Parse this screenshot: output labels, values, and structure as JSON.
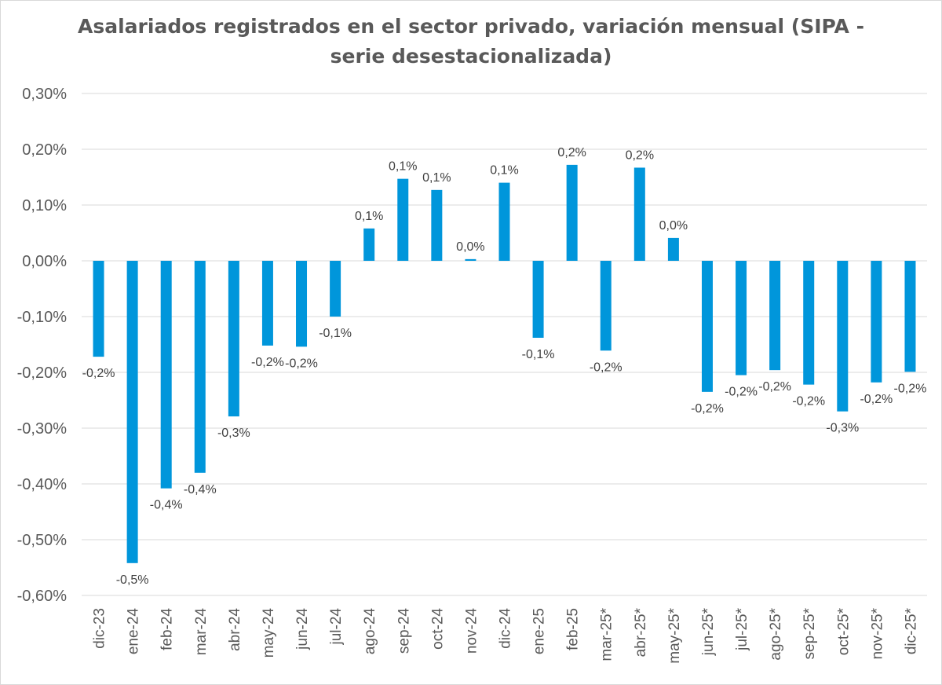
{
  "chart_data": {
    "type": "bar",
    "title_lines": [
      "Asalariados registrados en el sector privado, variación mensual (SIPA -",
      "serie desestacionalizada)"
    ],
    "xlabel": "",
    "ylabel": "",
    "ylim": [
      -0.6,
      0.3
    ],
    "yticks": [
      0.3,
      0.2,
      0.1,
      0.0,
      -0.1,
      -0.2,
      -0.3,
      -0.4,
      -0.5,
      -0.6
    ],
    "ytick_labels": [
      "0,30%",
      "0,20%",
      "0,10%",
      "0,00%",
      "-0,10%",
      "-0,20%",
      "-0,30%",
      "-0,40%",
      "-0,50%",
      "-0,60%"
    ],
    "grid": true,
    "bar_color": "#0096DB",
    "categories": [
      "dic-23",
      "ene-24",
      "feb-24",
      "mar-24",
      "abr-24",
      "may-24",
      "jun-24",
      "jul-24",
      "ago-24",
      "sep-24",
      "oct-24",
      "nov-24",
      "dic-24",
      "ene-25",
      "feb-25",
      "mar-25*",
      "abr-25*",
      "may-25*",
      "jun-25*",
      "jul-25*",
      "ago-25*",
      "sep-25*",
      "oct-25*",
      "nov-25*",
      "dic-25*"
    ],
    "values": [
      -0.172,
      -0.542,
      -0.408,
      -0.38,
      -0.279,
      -0.152,
      -0.154,
      -0.1,
      0.058,
      0.147,
      0.127,
      0.003,
      0.14,
      -0.138,
      0.172,
      -0.161,
      0.167,
      0.041,
      -0.235,
      -0.205,
      -0.196,
      -0.222,
      -0.27,
      -0.218,
      -0.199
    ],
    "data_labels": [
      "-0,2%",
      "-0,5%",
      "-0,4%",
      "-0,4%",
      "-0,3%",
      "-0,2%",
      "-0,2%",
      "-0,1%",
      "0,1%",
      "0,1%",
      "0,1%",
      "0,0%",
      "0,1%",
      "-0,1%",
      "0,2%",
      "-0,2%",
      "0,2%",
      "0,0%",
      "-0,2%",
      "-0,2%",
      "-0,2%",
      "-0,2%",
      "-0,3%",
      "-0,2%",
      "-0,2%"
    ]
  }
}
